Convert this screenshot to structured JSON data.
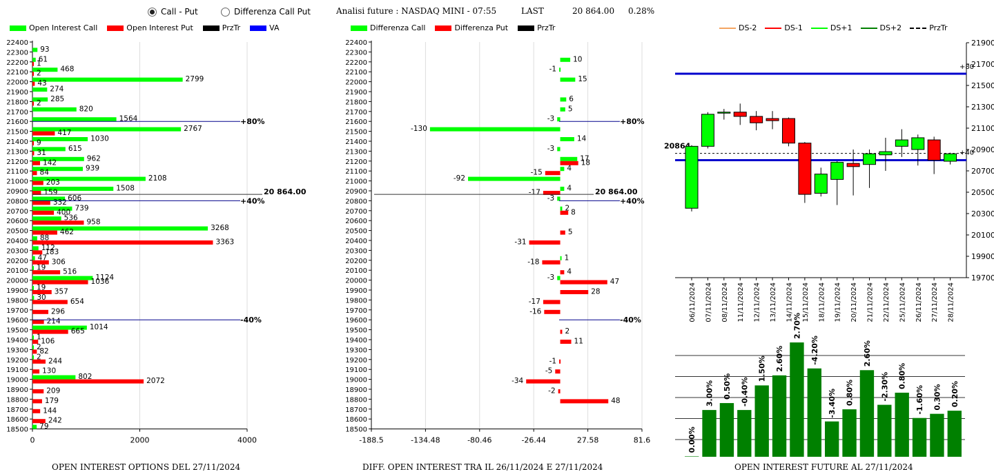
{
  "toggle": {
    "opt1": "Call - Put",
    "opt2": "Differenza Call Put",
    "selected": "opt1"
  },
  "header": {
    "title": "Analisi future : NASDAQ MINI - 07:55",
    "last_label": "LAST",
    "last_value": "20 864.00",
    "change": "0.28%"
  },
  "legend1": [
    {
      "label": "Open Interest Call",
      "color": "#00ff00"
    },
    {
      "label": "Open Interest Put",
      "color": "#ff0000"
    },
    {
      "label": "PrzTr",
      "color": "#000000"
    },
    {
      "label": "VA",
      "color": "#0000ff"
    }
  ],
  "legend2": [
    {
      "label": "Differenza Call",
      "color": "#00ff00"
    },
    {
      "label": "Differenza Put",
      "color": "#ff0000"
    },
    {
      "label": "PrzTr",
      "color": "#000000"
    }
  ],
  "legend3": [
    {
      "label": "DS-2",
      "color": "#f4a460",
      "dash": false
    },
    {
      "label": "DS-1",
      "color": "#ff0000",
      "dash": false
    },
    {
      "label": "DS+1",
      "color": "#00ff00",
      "dash": false
    },
    {
      "label": "DS+2",
      "color": "#008000",
      "dash": false
    },
    {
      "label": "PrzTr",
      "color": "#000000",
      "dash": true
    }
  ],
  "footers": {
    "chart1": "OPEN INTEREST OPTIONS DEL 27/11/2024",
    "chart2": "DIFF. OPEN INTEREST TRA IL 26/11/2024 E 27/11/2024",
    "chart3": "OPEN INTEREST FUTURE AL 27/11/2024"
  },
  "chart_data": [
    {
      "type": "bar",
      "orientation": "horizontal",
      "strikes": [
        22400,
        22300,
        22200,
        22100,
        22000,
        21900,
        21800,
        21700,
        21600,
        21500,
        21400,
        21300,
        21200,
        21100,
        21000,
        20900,
        20800,
        20700,
        20600,
        20500,
        20400,
        20300,
        20200,
        20100,
        20000,
        19900,
        19800,
        19700,
        19600,
        19500,
        19400,
        19300,
        19200,
        19100,
        19000,
        18900,
        18800,
        18700,
        18600,
        18500
      ],
      "series": [
        {
          "name": "Open Interest Call",
          "color": "#00ff00",
          "values": [
            null,
            93,
            61,
            468,
            2799,
            274,
            285,
            820,
            1564,
            2767,
            1030,
            615,
            962,
            939,
            2108,
            1508,
            606,
            739,
            536,
            3268,
            88,
            112,
            47,
            19,
            1124,
            19,
            30,
            null,
            null,
            1014,
            1,
            2,
            2,
            null,
            802,
            null,
            null,
            null,
            null,
            79
          ]
        },
        {
          "name": "Open Interest Put",
          "color": "#ff0000",
          "values": [
            null,
            null,
            1,
            2,
            43,
            null,
            2,
            null,
            null,
            417,
            9,
            31,
            142,
            84,
            203,
            159,
            332,
            400,
            958,
            462,
            3363,
            183,
            306,
            516,
            1036,
            357,
            654,
            296,
            214,
            665,
            106,
            82,
            244,
            130,
            2072,
            209,
            179,
            144,
            242,
            null
          ]
        }
      ],
      "xlim": [
        0,
        4000
      ],
      "xticks": [
        "0",
        "2000",
        "4000"
      ],
      "annotations": [
        {
          "strike": 21600,
          "label": "+80%"
        },
        {
          "strike": 20800,
          "label": "+40%"
        },
        {
          "strike": 19600,
          "label": "-40%"
        }
      ],
      "price_label": "20 864.00",
      "price": 20864
    },
    {
      "type": "bar",
      "orientation": "horizontal",
      "strikes": [
        22400,
        22300,
        22200,
        22100,
        22000,
        21900,
        21800,
        21700,
        21600,
        21500,
        21400,
        21300,
        21200,
        21100,
        21000,
        20900,
        20800,
        20700,
        20600,
        20500,
        20400,
        20300,
        20200,
        20100,
        20000,
        19900,
        19800,
        19700,
        19600,
        19500,
        19400,
        19300,
        19200,
        19100,
        19000,
        18900,
        18800,
        18700,
        18600,
        18500
      ],
      "series": [
        {
          "name": "Differenza Call",
          "color": "#00ff00",
          "values": [
            null,
            null,
            10,
            -1,
            15,
            null,
            6,
            5,
            -3,
            -130,
            14,
            -3,
            17,
            4,
            -92,
            4,
            -3,
            2,
            null,
            null,
            null,
            null,
            1,
            null,
            -3,
            null,
            null,
            null,
            null,
            null,
            null,
            null,
            null,
            null,
            null,
            null,
            null,
            null,
            null,
            null
          ]
        },
        {
          "name": "Differenza Put",
          "color": "#ff0000",
          "values": [
            null,
            null,
            null,
            null,
            null,
            null,
            null,
            null,
            null,
            null,
            null,
            null,
            18,
            -15,
            null,
            -17,
            null,
            8,
            null,
            5,
            -31,
            null,
            -18,
            4,
            47,
            28,
            -17,
            -16,
            null,
            2,
            11,
            null,
            -1,
            -5,
            -34,
            -2,
            48,
            null,
            null,
            null
          ]
        }
      ],
      "xlim": [
        -188.5,
        81.6
      ],
      "xticks": [
        "-188.5",
        "-134.48",
        "-80.46",
        "-26.44",
        "27.58",
        "81.6"
      ],
      "annotations": [
        {
          "strike": 21600,
          "label": "+80%"
        },
        {
          "strike": 20800,
          "label": "+40%"
        },
        {
          "strike": 19600,
          "label": "-40%"
        }
      ],
      "price_label": "20 864.00",
      "price": 20864
    },
    {
      "type": "candlestick",
      "dates": [
        "06/11/2024",
        "07/11/2024",
        "08/11/2024",
        "11/11/2024",
        "12/11/2024",
        "13/11/2024",
        "14/11/2024",
        "15/11/2024",
        "18/11/2024",
        "19/11/2024",
        "20/11/2024",
        "21/11/2024",
        "22/11/2024",
        "25/11/2024",
        "26/11/2024",
        "27/11/2024",
        "28/11/2024"
      ],
      "open": [
        20350,
        20930,
        21250,
        21250,
        21210,
        21190,
        21190,
        20960,
        20490,
        20620,
        20770,
        20760,
        20850,
        20930,
        20900,
        20990,
        20790
      ],
      "close": [
        20930,
        21230,
        21250,
        21210,
        21150,
        21170,
        20960,
        20480,
        20670,
        20780,
        20740,
        20860,
        20880,
        20990,
        21010,
        20800,
        20860
      ],
      "high": [
        20940,
        21250,
        21280,
        21330,
        21260,
        21260,
        21200,
        20970,
        20730,
        20790,
        20900,
        20900,
        21010,
        21090,
        21040,
        21020,
        20870
      ],
      "low": [
        20320,
        20910,
        21180,
        21130,
        21080,
        21090,
        20930,
        20400,
        20460,
        20380,
        20470,
        20540,
        20700,
        20830,
        20750,
        20670,
        20760
      ],
      "ylim": [
        19700,
        21900
      ],
      "yticks": [
        21900,
        21700,
        21500,
        21300,
        21100,
        20900,
        20700,
        20500,
        20300,
        20100,
        19900,
        19700
      ],
      "price": 20864,
      "price_label": "20864",
      "level_upper": 21610,
      "level_upper_label": "+80",
      "level_lower": 20800,
      "level_lower_label": "+40"
    },
    {
      "type": "bar",
      "categories": [
        "06/11/2024",
        "07/11/2024",
        "08/11/2024",
        "11/11/2024",
        "12/11/2024",
        "13/11/2024",
        "14/11/2024",
        "15/11/2024",
        "18/11/2024",
        "19/11/2024",
        "20/11/2024",
        "21/11/2024",
        "22/11/2024",
        "25/11/2024",
        "26/11/2024",
        "27/11/2024"
      ],
      "labels": [
        "0.00%",
        "3.00%",
        "0.50%",
        "-0.40%",
        "1.50%",
        "2.60%",
        "2.70%",
        "-4.20%",
        "-3.40%",
        "0.80%",
        "2.60%",
        "-2.30%",
        "0.80%",
        "-1.60%",
        "0.30%",
        "0.20%"
      ],
      "heights": [
        0.12,
        13.5,
        15.5,
        13.5,
        20.6,
        23.5,
        33.0,
        25.5,
        10.2,
        13.7,
        25.0,
        15.0,
        18.5,
        11.2,
        12.4,
        13.3
      ],
      "color": "#008000",
      "ylim": [
        0,
        35
      ]
    }
  ]
}
